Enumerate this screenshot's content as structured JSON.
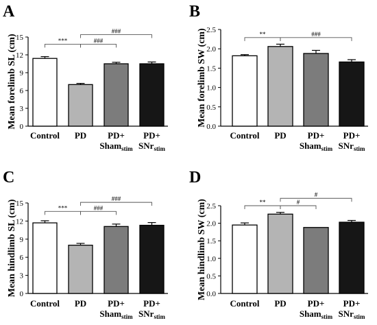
{
  "colors": {
    "Control": "#ffffff",
    "PD": "#b4b4b4",
    "Sham": "#7c7c7c",
    "SNr": "#161616"
  },
  "chart_data": [
    {
      "type": "bar",
      "panel": "A",
      "ylabel": "Mean forelimb SL (cm)",
      "categories": [
        {
          "main": "Control",
          "sub": ""
        },
        {
          "main": "PD",
          "sub": ""
        },
        {
          "main": "PD+",
          "sub": "Sham",
          "subscript": "stim"
        },
        {
          "main": "PD+",
          "sub": "SNr",
          "subscript": "stim"
        }
      ],
      "values": [
        11.4,
        7.0,
        10.5,
        10.5
      ],
      "errors": [
        0.3,
        0.2,
        0.25,
        0.3
      ],
      "ylim": [
        0,
        15
      ],
      "yticks": [
        0,
        3,
        6,
        9,
        12,
        15
      ],
      "ytick_labels": [
        "0",
        "3",
        "6",
        "9",
        "12",
        "15"
      ],
      "comparisons": [
        {
          "from": 0,
          "to": 1,
          "label": "***",
          "at": 13.8
        },
        {
          "from": 1,
          "to": 2,
          "label": "###",
          "at": 13.8
        },
        {
          "from": 1,
          "to": 3,
          "label": "###",
          "at": 15.4
        }
      ]
    },
    {
      "type": "bar",
      "panel": "B",
      "ylabel": "Mean forelimb SW (cm)",
      "categories": [
        {
          "main": "Control",
          "sub": ""
        },
        {
          "main": "PD",
          "sub": ""
        },
        {
          "main": "PD+",
          "sub": "Sham",
          "subscript": "stim"
        },
        {
          "main": "PD+",
          "sub": "SNr",
          "subscript": "stim"
        }
      ],
      "values": [
        1.82,
        2.06,
        1.88,
        1.66
      ],
      "errors": [
        0.03,
        0.06,
        0.08,
        0.06
      ],
      "ylim": [
        0,
        2.5
      ],
      "yticks": [
        0,
        0.5,
        1,
        1.5,
        2,
        2.5
      ],
      "ytick_labels": [
        "0.0",
        "0.5",
        "1.0",
        "1.5",
        "2.0",
        "2.5"
      ],
      "comparisons": [
        {
          "from": 0,
          "to": 1,
          "label": "**",
          "at": 2.29
        },
        {
          "from": 1,
          "to": 3,
          "label": "###",
          "at": 2.29
        }
      ]
    },
    {
      "type": "bar",
      "panel": "C",
      "ylabel": "Mean hindlimb SL (cm)",
      "categories": [
        {
          "main": "Control",
          "sub": ""
        },
        {
          "main": "PD",
          "sub": ""
        },
        {
          "main": "PD+",
          "sub": "Sham",
          "subscript": "stim"
        },
        {
          "main": "PD+",
          "sub": "SNr",
          "subscript": "stim"
        }
      ],
      "values": [
        11.7,
        8.0,
        11.1,
        11.3
      ],
      "errors": [
        0.35,
        0.3,
        0.4,
        0.45
      ],
      "ylim": [
        0,
        15
      ],
      "yticks": [
        0,
        3,
        6,
        9,
        12,
        15
      ],
      "ytick_labels": [
        "0",
        "3",
        "6",
        "9",
        "12",
        "15"
      ],
      "comparisons": [
        {
          "from": 0,
          "to": 1,
          "label": "***",
          "at": 13.6
        },
        {
          "from": 1,
          "to": 2,
          "label": "###",
          "at": 13.6
        },
        {
          "from": 1,
          "to": 3,
          "label": "###",
          "at": 15.1
        }
      ]
    },
    {
      "type": "bar",
      "panel": "D",
      "ylabel": "Mean hindlimb SW (cm)",
      "categories": [
        {
          "main": "Control",
          "sub": ""
        },
        {
          "main": "PD",
          "sub": ""
        },
        {
          "main": "PD+",
          "sub": "Sham",
          "subscript": "stim"
        },
        {
          "main": "PD+",
          "sub": "SNr",
          "subscript": "stim"
        }
      ],
      "values": [
        1.95,
        2.26,
        1.88,
        2.03
      ],
      "errors": [
        0.06,
        0.05,
        0.0,
        0.05
      ],
      "ylim": [
        0,
        2.5
      ],
      "yticks": [
        0,
        0.5,
        1,
        1.5,
        2,
        2.5
      ],
      "ytick_labels": [
        "0.0",
        "0.5",
        "1.0",
        "1.5",
        "2.0",
        "2.5"
      ],
      "comparisons": [
        {
          "from": 0,
          "to": 1,
          "label": "**",
          "at": 2.5
        },
        {
          "from": 1,
          "to": 2,
          "label": "#",
          "at": 2.5
        },
        {
          "from": 1,
          "to": 3,
          "label": "#",
          "at": 2.71
        }
      ]
    }
  ]
}
